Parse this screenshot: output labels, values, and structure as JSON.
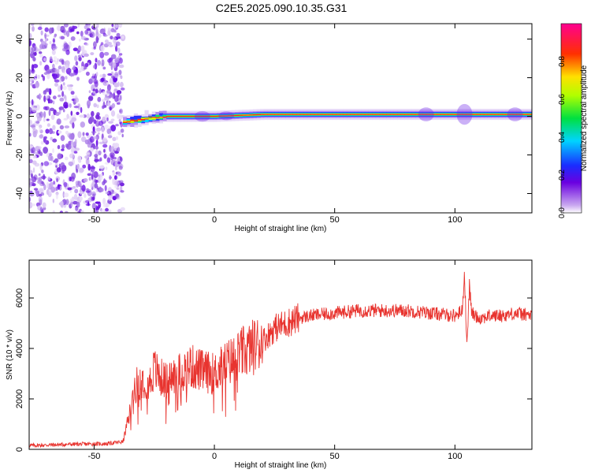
{
  "title": "C2E5.2025.090.10.35.G31",
  "colors": {
    "snr_line": "#e8342f",
    "axis": "#000000"
  },
  "chart_data": [
    {
      "type": "heatmap",
      "name": "spectrogram",
      "xlabel": "Height of straight line (km)",
      "ylabel": "Frequency (Hz)",
      "xlim": [
        -77,
        132
      ],
      "ylim": [
        -50,
        48
      ],
      "x_ticks": [
        -50,
        0,
        50,
        100
      ],
      "y_ticks": [
        -40,
        -20,
        0,
        20,
        40
      ],
      "colorbar": {
        "label": "Normalized spectral amplitude",
        "range": [
          0,
          1
        ],
        "ticks": [
          0.0,
          0.2,
          0.4,
          0.6,
          0.8
        ],
        "colormap": "rainbow (white-purple-blue-cyan-green-yellow-red-magenta)"
      },
      "noise_region_x": [
        -77,
        -38
      ],
      "signal_ridge": [
        {
          "x": -38,
          "freq": -3
        },
        {
          "x": -33,
          "freq": -2
        },
        {
          "x": -28,
          "freq": -1
        },
        {
          "x": -20,
          "freq": 0
        },
        {
          "x": 0,
          "freq": 0
        },
        {
          "x": 20,
          "freq": 1
        },
        {
          "x": 50,
          "freq": 1
        },
        {
          "x": 100,
          "freq": 1
        },
        {
          "x": 132,
          "freq": 1
        }
      ]
    },
    {
      "type": "line",
      "name": "snr",
      "xlabel": "Height of straight line (km)",
      "ylabel": "SNR (10 * v/v)",
      "xlim": [
        -77,
        132
      ],
      "ylim": [
        0,
        7500
      ],
      "x_ticks": [
        -50,
        0,
        50,
        100
      ],
      "y_ticks": [
        0,
        2000,
        4000,
        6000
      ],
      "series": [
        {
          "x": [
            -77,
            -60,
            -45,
            -38,
            -35,
            -33,
            -30,
            -27,
            -25,
            -23,
            -20,
            -15,
            -10,
            -5,
            0,
            5,
            10,
            15,
            20,
            25,
            30,
            35,
            40,
            50,
            60,
            70,
            80,
            90,
            100,
            103,
            104,
            105,
            106,
            107,
            110,
            115,
            120,
            125,
            132
          ],
          "y": [
            150,
            200,
            220,
            300,
            1500,
            2500,
            2800,
            2600,
            3200,
            2900,
            2700,
            3000,
            3300,
            3100,
            3000,
            3400,
            3700,
            4000,
            4300,
            4800,
            5000,
            5200,
            5300,
            5400,
            5500,
            5500,
            5500,
            5400,
            5300,
            5500,
            7000,
            4000,
            6500,
            5400,
            5200,
            5300,
            5300,
            5400,
            5300
          ]
        }
      ]
    }
  ]
}
